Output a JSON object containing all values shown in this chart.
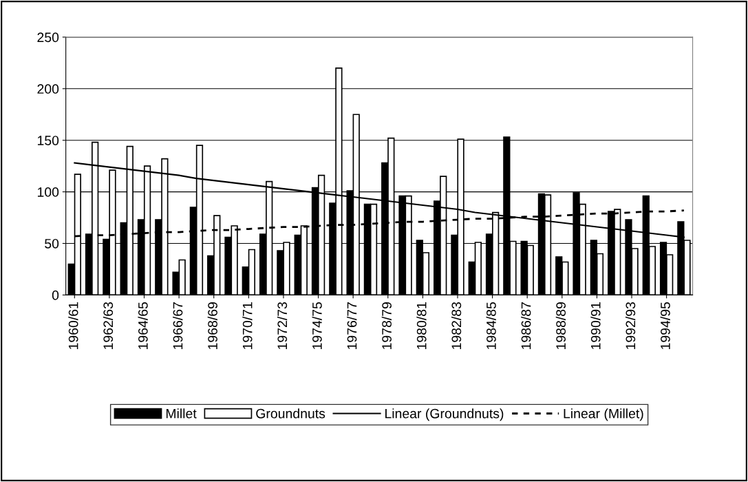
{
  "chart_data": {
    "type": "bar",
    "categories": [
      "1960/61",
      null,
      "1962/63",
      null,
      "1964/65",
      null,
      "1966/67",
      null,
      "1968/69",
      null,
      "1970/71",
      null,
      "1972/73",
      null,
      "1974/75",
      null,
      "1976/77",
      null,
      "1978/79",
      null,
      "1980/81",
      null,
      "1982/83",
      null,
      "1984/85",
      null,
      "1986/87",
      null,
      "1988/89",
      null,
      "1990/91",
      null,
      "1992/93",
      null,
      "1994/95",
      null
    ],
    "series": [
      {
        "name": "Millet",
        "color": "#000000",
        "values": [
          30,
          59,
          54,
          70,
          73,
          73,
          22,
          85,
          38,
          56,
          27,
          59,
          43,
          58,
          104,
          89,
          101,
          88,
          128,
          96,
          53,
          91,
          58,
          32,
          59,
          153,
          52,
          98,
          37,
          99,
          53,
          81,
          73,
          96,
          51,
          71
        ]
      },
      {
        "name": "Groundnuts",
        "color": "#ffffff",
        "values": [
          117,
          148,
          121,
          144,
          125,
          132,
          34,
          145,
          77,
          67,
          44,
          110,
          51,
          67,
          116,
          220,
          175,
          88,
          152,
          96,
          41,
          115,
          151,
          51,
          80,
          52,
          48,
          97,
          32,
          88,
          40,
          83,
          45,
          47,
          39,
          53
        ]
      },
      {
        "name": "Linear (Groundnuts)",
        "type": "line",
        "color": "#000000",
        "line_style": "solid",
        "values": [
          128,
          126,
          124,
          122,
          120,
          118,
          116,
          113,
          111,
          109,
          107,
          105,
          103,
          101,
          99,
          97,
          95,
          93,
          91,
          89,
          87,
          85,
          83,
          80,
          78,
          76,
          74,
          72,
          70,
          68,
          66,
          64,
          62,
          60,
          58,
          56
        ]
      },
      {
        "name": "Linear (Millet)",
        "type": "line",
        "color": "#000000",
        "line_style": "dashed",
        "values": [
          57,
          58,
          58,
          59,
          60,
          61,
          61,
          62,
          63,
          63,
          64,
          65,
          66,
          66,
          67,
          68,
          68,
          69,
          70,
          71,
          71,
          72,
          73,
          74,
          74,
          75,
          76,
          76,
          77,
          78,
          79,
          79,
          80,
          81,
          81,
          82
        ]
      }
    ],
    "ylim": [
      0,
      250
    ],
    "yticks": [
      0,
      50,
      100,
      150,
      200,
      250
    ],
    "grid": "y",
    "legend": "bottom",
    "marker": "none"
  }
}
